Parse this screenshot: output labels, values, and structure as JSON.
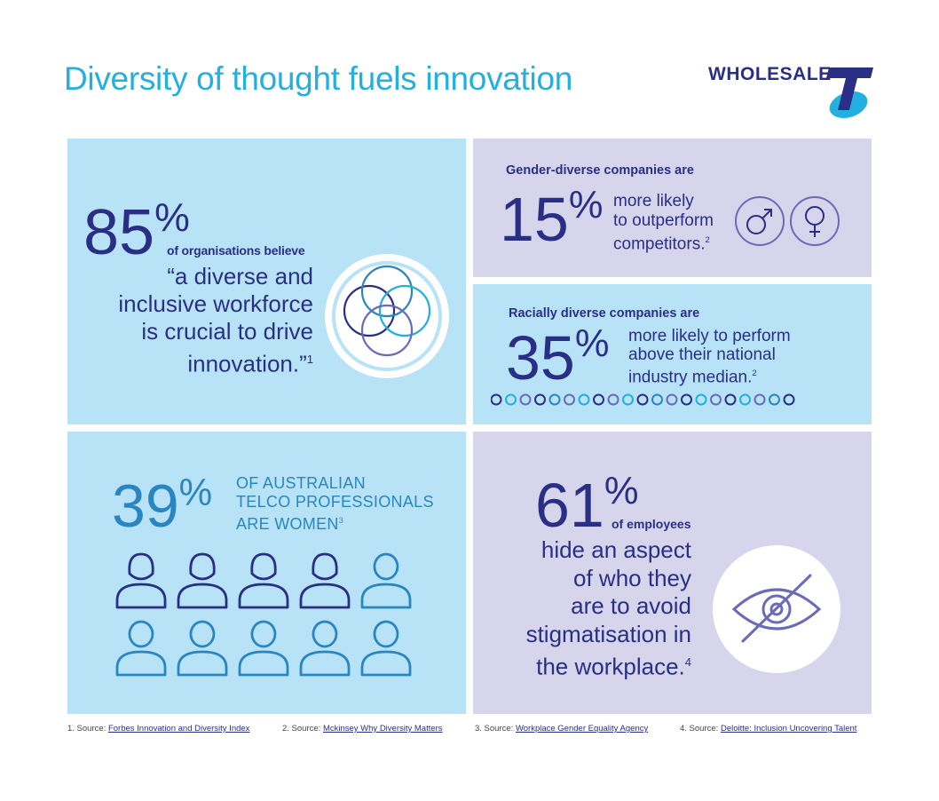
{
  "header": {
    "title": "Diversity of thought fuels innovation",
    "brand": "WHOLESALE"
  },
  "panel1": {
    "stat": "85",
    "pct": "%",
    "sub": "of organisations believe",
    "quote_lines": [
      "“a diverse and",
      "inclusive workforce",
      "is crucial to drive",
      "innovation.”"
    ],
    "ref": "1"
  },
  "panel2": {
    "heading": "Gender-diverse companies are",
    "stat": "15",
    "pct": "%",
    "desc_lines": [
      "more likely",
      "to outperform",
      "competitors."
    ],
    "ref": "2"
  },
  "panel3": {
    "heading": "Racially diverse companies are",
    "stat": "35",
    "pct": "%",
    "desc_lines": [
      "more likely to perform",
      "above their national",
      "industry median."
    ],
    "ref": "2",
    "dot_colors": [
      "#2a2f86",
      "#22b0e0",
      "#6a6ab8",
      "#2a2f86",
      "#2a86c0",
      "#6a6ab8",
      "#22b0e0",
      "#2a2f86",
      "#6a6ab8",
      "#22b0e0",
      "#2a2f86",
      "#2a86c0",
      "#6a6ab8",
      "#2a2f86",
      "#22b0e0",
      "#6a6ab8",
      "#2a2f86",
      "#22b0e0",
      "#6a6ab8",
      "#2a86c0",
      "#2a2f86"
    ]
  },
  "panel4": {
    "stat": "39",
    "pct": "%",
    "label_lines": [
      "OF AUSTRALIAN",
      "TELCO PROFESSIONALS",
      "ARE WOMEN"
    ],
    "ref": "3",
    "people_women": 4,
    "people_total": 10
  },
  "panel5": {
    "stat": "61",
    "pct": "%",
    "sub": "of employees",
    "desc_lines": [
      "hide an aspect",
      "of who they",
      "are to avoid",
      "stigmatisation in",
      "the workplace."
    ],
    "ref": "4"
  },
  "sources": [
    {
      "prefix": "1. Source: ",
      "link": "Forbes Innovation and Diversity Index"
    },
    {
      "prefix": "2. Source: ",
      "link": "Mckinsey Why Diversity Matters"
    },
    {
      "prefix": "3. Source: ",
      "link": "Workplace Gender Equality Agency"
    },
    {
      "prefix": "4. Source: ",
      "link": "Deloitte: Inclusion Uncovering Talent"
    }
  ],
  "colors": {
    "navy": "#2a2f86",
    "cyan": "#22b0e0",
    "light_blue_panel": "#b8e3f6",
    "lavender_panel": "#d6d5ec"
  },
  "icons": [
    "telstra-logo-icon",
    "venn-circles-icon",
    "male-symbol-icon",
    "female-symbol-icon",
    "woman-person-icon",
    "man-person-icon",
    "hidden-eye-icon"
  ]
}
